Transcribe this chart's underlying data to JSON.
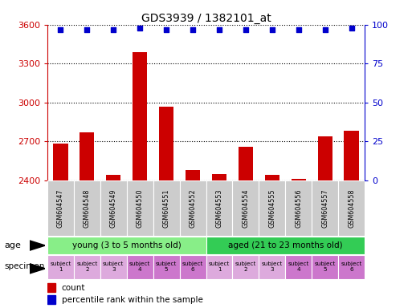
{
  "title": "GDS3939 / 1382101_at",
  "samples": [
    "GSM604547",
    "GSM604548",
    "GSM604549",
    "GSM604550",
    "GSM604551",
    "GSM604552",
    "GSM604553",
    "GSM604554",
    "GSM604555",
    "GSM604556",
    "GSM604557",
    "GSM604558"
  ],
  "counts": [
    2680,
    2770,
    2440,
    3390,
    2970,
    2480,
    2450,
    2660,
    2440,
    2410,
    2740,
    2780
  ],
  "percentile_ranks": [
    97,
    97,
    97,
    98,
    97,
    97,
    97,
    97,
    97,
    97,
    97,
    98
  ],
  "bar_color": "#cc0000",
  "dot_color": "#0000cc",
  "ylim_left": [
    2400,
    3600
  ],
  "ylim_right": [
    0,
    100
  ],
  "yticks_left": [
    2400,
    2700,
    3000,
    3300,
    3600
  ],
  "yticks_right": [
    0,
    25,
    50,
    75,
    100
  ],
  "age_groups": [
    {
      "label": "young (3 to 5 months old)",
      "start": 0,
      "end": 6,
      "color": "#88ee88"
    },
    {
      "label": "aged (21 to 23 months old)",
      "start": 6,
      "end": 12,
      "color": "#33cc55"
    }
  ],
  "specimen_colors_pattern": [
    "#ddaadd",
    "#ddaadd",
    "#ddaadd",
    "#cc77cc",
    "#cc77cc",
    "#cc77cc"
  ],
  "specimen_labels": [
    "subject\n1",
    "subject\n2",
    "subject\n3",
    "subject\n4",
    "subject\n5",
    "subject\n6",
    "subject\n1",
    "subject\n2",
    "subject\n3",
    "subject\n4",
    "subject\n5",
    "subject\n6"
  ],
  "grid_color": "#888888",
  "tick_color_left": "#cc0000",
  "tick_color_right": "#0000cc",
  "xlabels_bg": "#cccccc",
  "background_color": "#ffffff"
}
